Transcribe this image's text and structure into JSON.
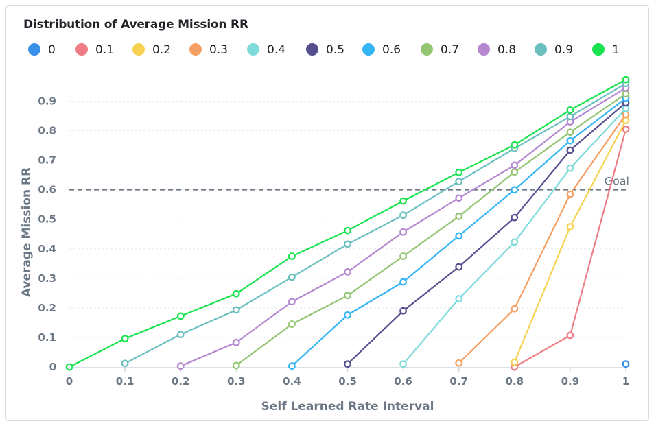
{
  "chart_data": {
    "type": "line",
    "title": "Distribution of Average Mission RR",
    "xlabel": "Self Learned Rate Interval",
    "ylabel": "Average Mission RR",
    "x": [
      0,
      0.1,
      0.2,
      0.3,
      0.4,
      0.5,
      0.6,
      0.7,
      0.8,
      0.9,
      1
    ],
    "xticks": [
      "0",
      "0.1",
      "0.2",
      "0.3",
      "0.4",
      "0.5",
      "0.6",
      "0.7",
      "0.8",
      "0.9",
      "1"
    ],
    "yticks": [
      "0",
      "0.1",
      "0.2",
      "0.3",
      "0.4",
      "0.5",
      "0.6",
      "0.7",
      "0.8",
      "0.9"
    ],
    "xlim": [
      0,
      1
    ],
    "ylim": [
      0,
      0.95
    ],
    "grid": "horizontal-dashed",
    "legend_position": "top",
    "reference_line": {
      "label": "Goal",
      "y": 0.6,
      "color": "#6b7785"
    },
    "series": [
      {
        "name": "0",
        "color": "#3a8fe8",
        "points": [
          [
            1,
            0.01
          ]
        ]
      },
      {
        "name": "0.1",
        "color": "#ef7b84",
        "points": [
          [
            0.8,
            0.0
          ],
          [
            0.9,
            0.107
          ],
          [
            1,
            0.805
          ]
        ]
      },
      {
        "name": "0.2",
        "color": "#f7d250",
        "points": [
          [
            0.8,
            0.016
          ],
          [
            0.9,
            0.475
          ],
          [
            1,
            0.835
          ]
        ]
      },
      {
        "name": "0.3",
        "color": "#f49f63",
        "points": [
          [
            0.7,
            0.013
          ],
          [
            0.8,
            0.197
          ],
          [
            0.9,
            0.585
          ],
          [
            1,
            0.855
          ]
        ]
      },
      {
        "name": "0.4",
        "color": "#7fdada",
        "points": [
          [
            0.6,
            0.01
          ],
          [
            0.7,
            0.231
          ],
          [
            0.8,
            0.423
          ],
          [
            0.9,
            0.673
          ],
          [
            1,
            0.875
          ]
        ]
      },
      {
        "name": "0.5",
        "color": "#554e8f",
        "points": [
          [
            0.5,
            0.01
          ],
          [
            0.6,
            0.19
          ],
          [
            0.7,
            0.339
          ],
          [
            0.8,
            0.506
          ],
          [
            0.9,
            0.734
          ],
          [
            1,
            0.895
          ]
        ]
      },
      {
        "name": "0.6",
        "color": "#36b5f4",
        "points": [
          [
            0.4,
            0.003
          ],
          [
            0.5,
            0.176
          ],
          [
            0.6,
            0.288
          ],
          [
            0.7,
            0.444
          ],
          [
            0.8,
            0.6
          ],
          [
            0.9,
            0.766
          ],
          [
            1,
            0.91
          ]
        ]
      },
      {
        "name": "0.7",
        "color": "#93c573",
        "points": [
          [
            0.3,
            0.005
          ],
          [
            0.4,
            0.145
          ],
          [
            0.5,
            0.242
          ],
          [
            0.6,
            0.375
          ],
          [
            0.7,
            0.51
          ],
          [
            0.8,
            0.66
          ],
          [
            0.9,
            0.795
          ],
          [
            1,
            0.925
          ]
        ]
      },
      {
        "name": "0.8",
        "color": "#b487d0",
        "points": [
          [
            0.2,
            0.003
          ],
          [
            0.3,
            0.083
          ],
          [
            0.4,
            0.221
          ],
          [
            0.5,
            0.322
          ],
          [
            0.6,
            0.457
          ],
          [
            0.7,
            0.572
          ],
          [
            0.8,
            0.683
          ],
          [
            0.9,
            0.83
          ],
          [
            1,
            0.945
          ]
        ]
      },
      {
        "name": "0.9",
        "color": "#6bbfbf",
        "points": [
          [
            0.1,
            0.012
          ],
          [
            0.2,
            0.11
          ],
          [
            0.3,
            0.193
          ],
          [
            0.4,
            0.304
          ],
          [
            0.5,
            0.416
          ],
          [
            0.6,
            0.514
          ],
          [
            0.7,
            0.628
          ],
          [
            0.8,
            0.74
          ],
          [
            0.9,
            0.848
          ],
          [
            1,
            0.96
          ]
        ]
      },
      {
        "name": "1",
        "color": "#18e34f",
        "points": [
          [
            0,
            0.0
          ],
          [
            0.1,
            0.096
          ],
          [
            0.2,
            0.172
          ],
          [
            0.3,
            0.248
          ],
          [
            0.4,
            0.375
          ],
          [
            0.5,
            0.462
          ],
          [
            0.6,
            0.562
          ],
          [
            0.7,
            0.659
          ],
          [
            0.8,
            0.752
          ],
          [
            0.9,
            0.87
          ],
          [
            1,
            0.973
          ]
        ]
      }
    ]
  }
}
